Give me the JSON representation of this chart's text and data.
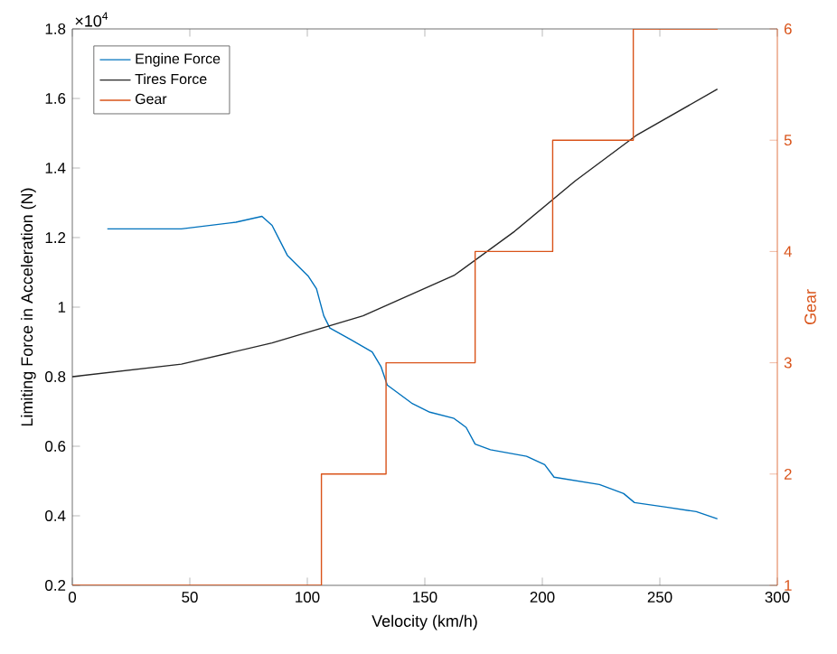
{
  "chart_data": {
    "type": "line",
    "xlabel": "Velocity (km/h)",
    "ylabel": "Limiting Force in Acceleration (N)",
    "y2label": "Gear",
    "annotations": [
      "×10$^{4}$"
    ],
    "xlim": [
      0,
      300
    ],
    "xticks": [
      0,
      50,
      100,
      150,
      200,
      250,
      300
    ],
    "ylim": [
      0.2,
      1.8
    ],
    "yticks": [
      0.2,
      0.4,
      0.6,
      0.8,
      1,
      1.2,
      1.4,
      1.6,
      1.8
    ],
    "y2lim": [
      1,
      6
    ],
    "y2ticks": [
      1,
      2,
      3,
      4,
      5,
      6
    ],
    "legend": "top left",
    "grid": false,
    "marker": "none",
    "line_style": "solid",
    "series": [
      {
        "name": "Engine Force",
        "color": "#0072bd",
        "x": [
          14.9,
          46.4,
          69.6,
          80.7,
          85,
          91.5,
          100.5,
          103.9,
          107,
          109.6,
          118.6,
          127.6,
          131.4,
          134,
          144.4,
          152.1,
          162.4,
          167.6,
          171.4,
          177.9,
          193.3,
          201,
          205,
          224.3,
          234.6,
          239.2,
          252.6,
          265.5,
          274.5
        ],
        "values": [
          1.225,
          1.225,
          1.244,
          1.261,
          1.235,
          1.149,
          1.088,
          1.053,
          0.975,
          0.94,
          0.906,
          0.871,
          0.828,
          0.776,
          0.724,
          0.698,
          0.68,
          0.654,
          0.606,
          0.59,
          0.571,
          0.547,
          0.511,
          0.49,
          0.464,
          0.438,
          0.425,
          0.412,
          0.391
        ]
      },
      {
        "name": "Tires Force",
        "color": "#262626",
        "x": [
          0,
          46.4,
          85,
          123.7,
          162.4,
          188.2,
          214,
          239.8,
          274.5
        ],
        "values": [
          0.8,
          0.836,
          0.897,
          0.975,
          1.091,
          1.218,
          1.363,
          1.493,
          1.627
        ]
      },
      {
        "name": "Gear",
        "color": "#d95319",
        "type": "step",
        "axis": "y2",
        "x": [
          0,
          106,
          133.5,
          171.4,
          204.4,
          238.7,
          274.6
        ],
        "values": [
          1,
          2,
          3,
          4,
          5,
          6,
          6
        ]
      }
    ]
  }
}
